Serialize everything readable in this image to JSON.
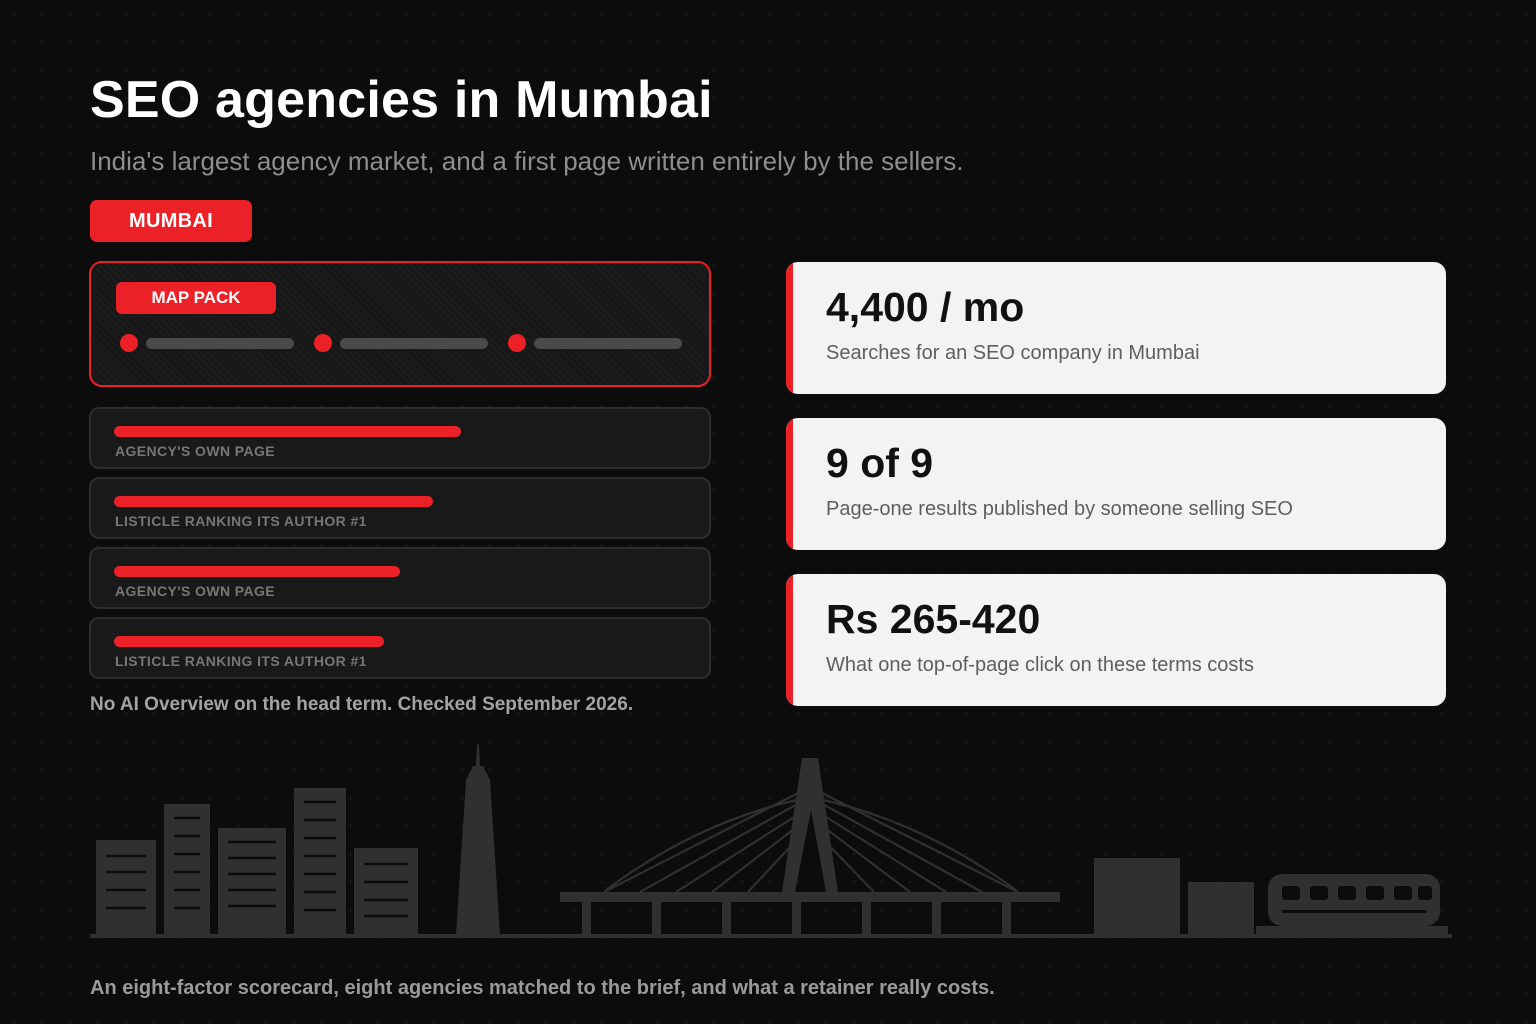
{
  "header": {
    "title": "SEO agencies in Mumbai",
    "subtitle": "India's largest agency market, and a first page written entirely by the sellers.",
    "city_badge": "MUMBAI"
  },
  "serp": {
    "map_pack_label": "MAP PACK",
    "map_listings": 3,
    "results": [
      {
        "label": "AGENCY'S OWN PAGE",
        "bar_fraction": 0.63
      },
      {
        "label": "LISTICLE RANKING ITS AUTHOR #1",
        "bar_fraction": 0.58
      },
      {
        "label": "AGENCY'S OWN PAGE",
        "bar_fraction": 0.52
      },
      {
        "label": "LISTICLE RANKING ITS AUTHOR #1",
        "bar_fraction": 0.49
      }
    ],
    "footnote": "No AI Overview on the head term. Checked September 2026."
  },
  "stats": [
    {
      "value": "4,400 / mo",
      "label": "Searches for an SEO company in Mumbai"
    },
    {
      "value": "9 of 9",
      "label": "Page-one results published by someone selling SEO"
    },
    {
      "value": "Rs 265-420",
      "label": "What one top-of-page click on these terms costs"
    }
  ],
  "colors": {
    "accent": "#ec2027",
    "background": "#0c0c0c",
    "card": "#f3f3f3",
    "skyline": "#303030"
  },
  "illustration": "mumbai-skyline-illustration",
  "footer": {
    "text": "An eight-factor scorecard, eight agencies matched to the brief, and what a retainer really costs."
  }
}
